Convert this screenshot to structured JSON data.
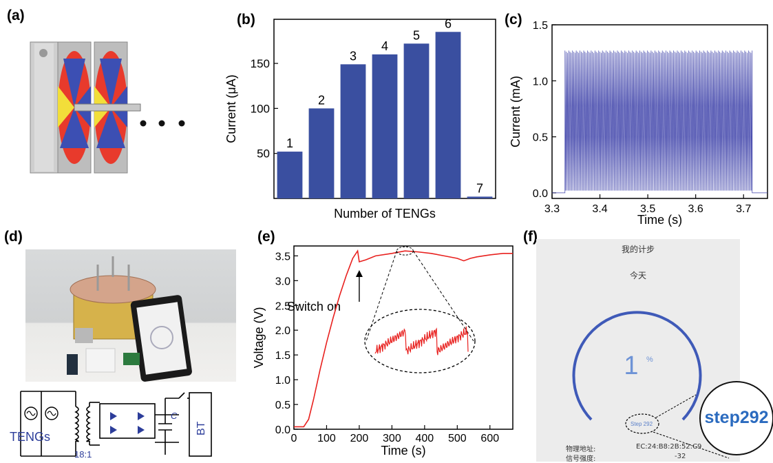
{
  "panels": {
    "a": {
      "label": "(a)"
    },
    "b": {
      "label": "(b)"
    },
    "c": {
      "label": "(c)"
    },
    "d": {
      "label": "(d)"
    },
    "e": {
      "label": "(e)"
    },
    "f": {
      "label": "(f)"
    }
  },
  "panel_d": {
    "circuit": {
      "source_label": "TENGs",
      "ratio_label": "18:1",
      "capacitor_label": "C",
      "load_label": "BT"
    }
  },
  "panel_e": {
    "annotation": "Switch on"
  },
  "panel_f": {
    "title": "我的计步",
    "today": "今天",
    "percent": "1",
    "percent_sign": "%",
    "step_small": "Step 292",
    "step_zoom": "step292",
    "mac_label": "物理地址:",
    "mac_value": "EC:24:B8:2B:52:C9",
    "signal_label": "信号强度:",
    "signal_value": "-32"
  },
  "chart_data": [
    {
      "panel": "b",
      "type": "bar",
      "categories": [
        "1",
        "2",
        "3",
        "4",
        "5",
        "6",
        "7"
      ],
      "values": [
        52,
        100,
        149,
        160,
        172,
        185,
        2
      ],
      "data_labels": [
        "1",
        "2",
        "3",
        "4",
        "5",
        "6",
        "7"
      ],
      "xlabel": "Number of TENGs",
      "ylabel": "Current (μA)",
      "ylim": [
        0,
        199
      ],
      "yticks": [
        50,
        100,
        150
      ],
      "color": "#3a4fa0"
    },
    {
      "panel": "c",
      "type": "line",
      "xlabel": "Time (s)",
      "ylabel": "Current (mA)",
      "xlim": [
        3.3,
        3.75
      ],
      "ylim": [
        -0.05,
        1.5
      ],
      "xticks": [
        3.3,
        3.4,
        3.5,
        3.6,
        3.7
      ],
      "yticks": [
        0.0,
        0.5,
        1.0,
        1.5
      ],
      "signal": {
        "t_start": 3.327,
        "t_end": 3.718,
        "peak": 1.27,
        "baseline": 0.0,
        "cycles": 150
      },
      "color": "#3b3fa8"
    },
    {
      "panel": "e",
      "type": "line",
      "xlabel": "Time (s)",
      "ylabel": "Voltage (V)",
      "xlim": [
        0,
        670
      ],
      "ylim": [
        0,
        3.7
      ],
      "xticks": [
        0,
        100,
        200,
        300,
        400,
        500,
        600
      ],
      "yticks": [
        0.0,
        0.5,
        1.0,
        1.5,
        2.0,
        2.5,
        3.0,
        3.5
      ],
      "series": [
        {
          "x": [
            0,
            30,
            45,
            60,
            80,
            100,
            120,
            140,
            160,
            180,
            195,
            200,
            220,
            250,
            300,
            340,
            380,
            420,
            460,
            500,
            520,
            540,
            560,
            600,
            640,
            670
          ],
          "y": [
            0.05,
            0.05,
            0.2,
            0.6,
            1.2,
            1.75,
            2.25,
            2.7,
            3.1,
            3.45,
            3.6,
            3.38,
            3.42,
            3.5,
            3.55,
            3.6,
            3.58,
            3.55,
            3.5,
            3.45,
            3.4,
            3.45,
            3.48,
            3.52,
            3.55,
            3.55
          ]
        }
      ],
      "annotation_x": 200,
      "color": "#e8201e"
    }
  ]
}
